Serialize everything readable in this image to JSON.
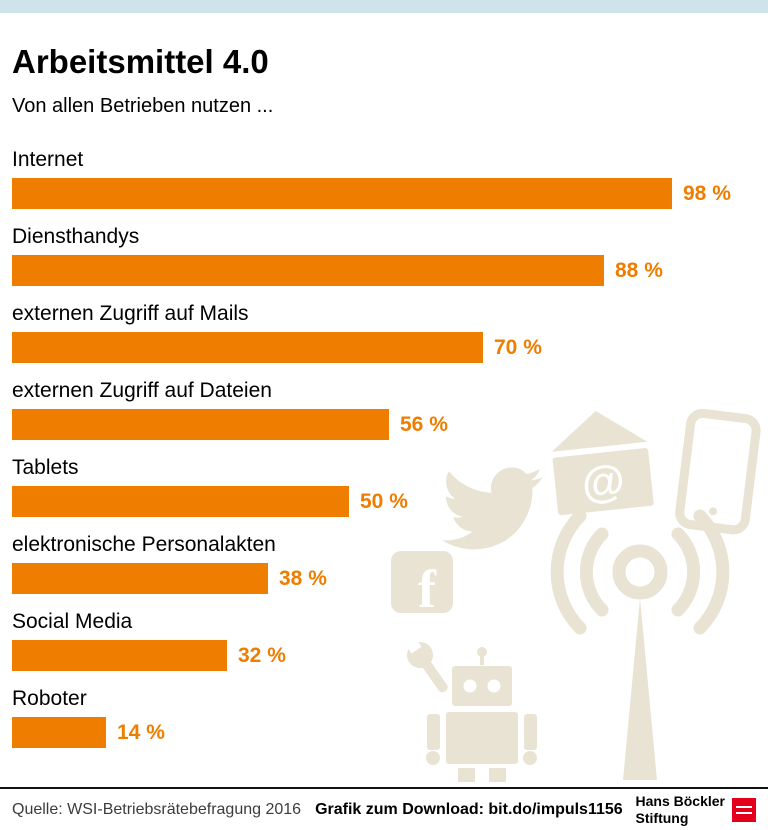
{
  "header": {
    "title": "Arbeitsmittel 4.0",
    "subtitle": "Von allen Betrieben nutzen ..."
  },
  "chart_data": {
    "type": "bar",
    "orientation": "horizontal",
    "title": "Arbeitsmittel 4.0",
    "subtitle": "Von allen Betrieben nutzen ...",
    "categories": [
      "Internet",
      "Diensthandys",
      "externen Zugriff auf Mails",
      "externen Zugriff auf Dateien",
      "Tablets",
      "elektronische Personalakten",
      "Social Media",
      "Roboter"
    ],
    "values": [
      98,
      88,
      70,
      56,
      50,
      38,
      32,
      14
    ],
    "value_labels": [
      "98 %",
      "88 %",
      "70 %",
      "56 %",
      "50 %",
      "38 %",
      "32 %",
      "14 %"
    ],
    "unit": "%",
    "xlim": [
      0,
      100
    ],
    "bar_color": "#ee7d00",
    "grid": false,
    "legend": false
  },
  "footer": {
    "source": "Quelle: WSI-Betriebsrätebefragung 2016",
    "download": "Grafik zum Download: bit.do/impuls1156",
    "brand_line1": "Hans Böckler",
    "brand_line2": "Stiftung"
  },
  "colors": {
    "accent": "#ee7d00",
    "topbar": "#cfe3eb",
    "watermark": "#e8e3d3",
    "brand_red": "#e2001a"
  },
  "decorations": [
    "twitter-icon",
    "email-at-icon",
    "smartphone-icon",
    "facebook-icon",
    "wrench-icon",
    "robot-icon",
    "antenna-icon"
  ]
}
